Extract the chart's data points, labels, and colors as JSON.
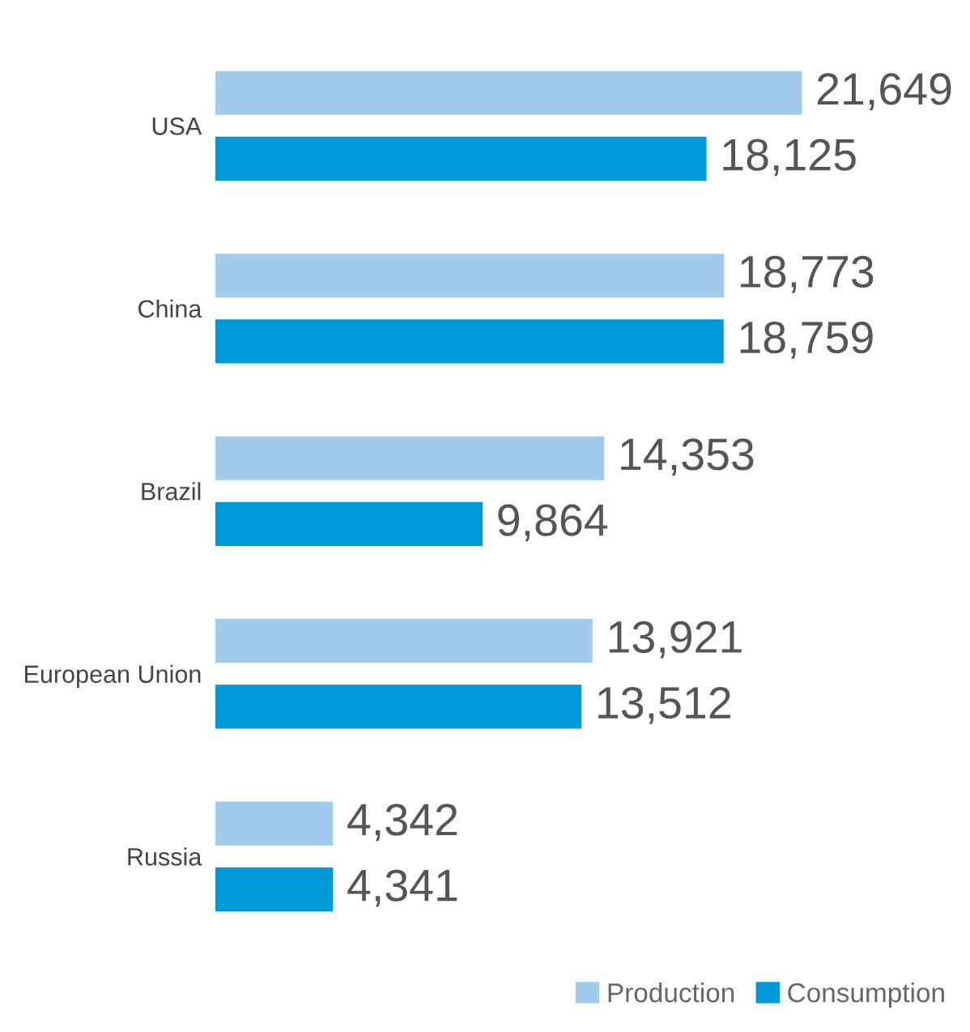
{
  "chart_data": {
    "type": "bar",
    "orientation": "horizontal",
    "categories": [
      "USA",
      "China",
      "Brazil",
      "European Union",
      "Russia"
    ],
    "series": [
      {
        "name": "Production",
        "color": "#a0cbec",
        "values": [
          21649,
          18773,
          14353,
          13921,
          4342
        ],
        "value_labels": [
          "21,649",
          "18,773",
          "14,353",
          "13,921",
          "4,342"
        ]
      },
      {
        "name": "Consumption",
        "color": "#0099d8",
        "values": [
          18125,
          18759,
          9864,
          13512,
          4341
        ],
        "value_labels": [
          "18,125",
          "18,759",
          "9,864",
          "13,512",
          "4,341"
        ]
      }
    ],
    "tick_labels": "y",
    "legend": "bottom right"
  }
}
